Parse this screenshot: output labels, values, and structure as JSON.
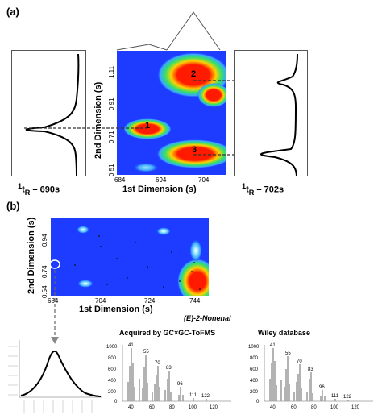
{
  "panel_a": {
    "label": "(a)",
    "x_axis_title": "1st Dimension (s)",
    "y_axis_title": "2nd Dimension (s)",
    "x_ticks": [
      "684",
      "694",
      "704"
    ],
    "y_ticks": [
      "0.51",
      "0.71",
      "0.91",
      "1.11"
    ],
    "peaks": [
      "1",
      "2",
      "3"
    ],
    "left_profile_label": "1tR – 690s",
    "right_profile_label": "1tR – 702s",
    "left_sup": "1",
    "left_sub": "R",
    "left_text": " – 690s",
    "right_sup": "1",
    "right_sub": "R",
    "right_text": " – 702s"
  },
  "panel_b": {
    "label": "(b)",
    "x_axis_title": "1st Dimension (s)",
    "y_axis_title": "2nd Dimension (s)",
    "x_ticks": [
      "684",
      "704",
      "724",
      "744"
    ],
    "y_ticks": [
      "0.54",
      "0.74",
      "0.94"
    ],
    "compound_name": "(E)-2-Nonenal",
    "acquired_title": "Acquired by GC×GC-ToFMS",
    "wiley_title": "Wiley database"
  },
  "ms_spectra": {
    "y_ticks": [
      "0",
      "200",
      "400",
      "600",
      "800",
      "1000"
    ],
    "x_ticks": [
      "40",
      "60",
      "80",
      "100",
      "120"
    ],
    "peak_labels": [
      "41",
      "55",
      "70",
      "83",
      "96",
      "111",
      "122"
    ]
  },
  "colors": {
    "plot_blue": "#1e3cff",
    "hot_red": "#ff1a00",
    "spectrum_gray": "#a0a0a0"
  }
}
